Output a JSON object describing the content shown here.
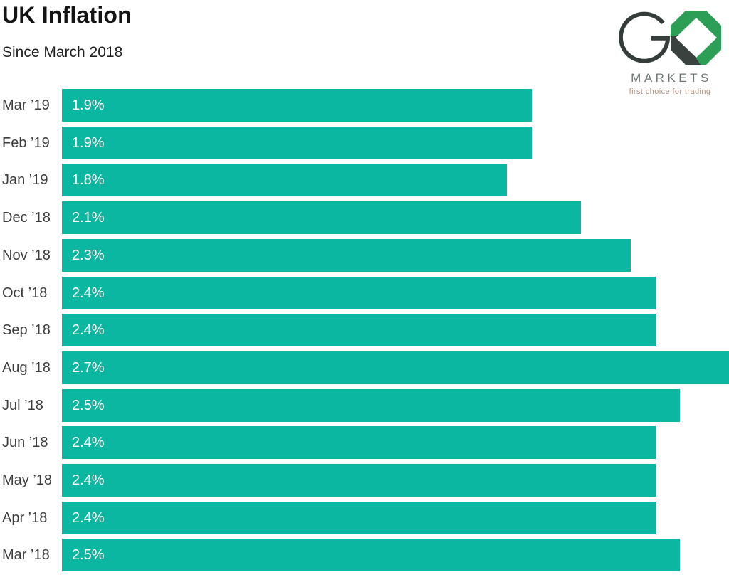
{
  "header": {
    "title": "UK Inflation",
    "subtitle": "Since March 2018"
  },
  "logo": {
    "g_letter": "G",
    "markets_text": "MARKETS",
    "tagline": "first choice for trading"
  },
  "colors": {
    "bar": "#0cb7a1",
    "label": "#3d3d3d",
    "value_text": "#ffffff",
    "logo_green": "#2d9e55",
    "logo_dark": "#39423f",
    "logo_gray": "#6e7674",
    "logo_tan": "#b08f7d"
  },
  "chart_data": {
    "type": "bar",
    "orientation": "horizontal",
    "title": "UK Inflation",
    "subtitle": "Since March 2018",
    "categories": [
      "Mar ’19",
      "Feb ’19",
      "Jan ’19",
      "Dec ’18",
      "Nov ’18",
      "Oct ’18",
      "Sep ’18",
      "Aug ’18",
      "Jul ’18",
      "Jun ’18",
      "May ’18",
      "Apr ’18",
      "Mar ’18"
    ],
    "values": [
      1.9,
      1.9,
      1.8,
      2.1,
      2.3,
      2.4,
      2.4,
      2.7,
      2.5,
      2.4,
      2.4,
      2.4,
      2.5
    ],
    "value_labels": [
      "1.9%",
      "1.9%",
      "1.8%",
      "2.1%",
      "2.3%",
      "2.4%",
      "2.4%",
      "2.7%",
      "2.5%",
      "2.4%",
      "2.4%",
      "2.4%",
      "2.5%"
    ],
    "unit": "%",
    "xlim": [
      0,
      2.7
    ],
    "grid": false,
    "legend": false,
    "bar_color": "#0cb7a1"
  }
}
